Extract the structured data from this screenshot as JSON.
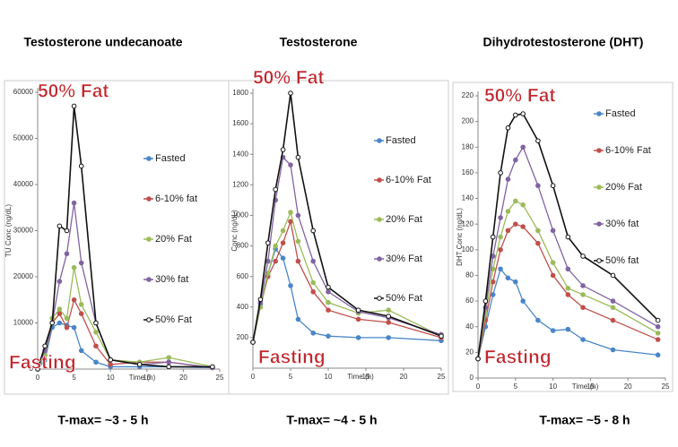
{
  "chart_data": [
    {
      "type": "line",
      "title": "Testosterone undecanoate",
      "note": "T-max= ~3 - 5 h",
      "fat_label": "50% Fat",
      "fasting_label": "Fasting",
      "xlabel": "Time (h)",
      "ylabel": "TU Conc (ng/dL)",
      "xlim": [
        0,
        25
      ],
      "ylim": [
        0,
        60000
      ],
      "xticks": [
        0,
        5,
        10,
        15,
        20,
        25
      ],
      "yticks": [
        0,
        10000,
        20000,
        30000,
        40000,
        50000,
        60000
      ],
      "x": [
        0,
        1,
        2,
        3,
        4,
        5,
        6,
        8,
        10,
        14,
        18,
        24
      ],
      "series": [
        {
          "name": "Fasted",
          "color": "#4a86c8",
          "values": [
            0,
            2000,
            9000,
            10000,
            9500,
            9000,
            4000,
            1500,
            500,
            500,
            500,
            300
          ]
        },
        {
          "name": "6-10% fat",
          "color": "#c0504d",
          "values": [
            0,
            3000,
            10000,
            12000,
            9000,
            15000,
            12000,
            5000,
            1000,
            1500,
            1500,
            300
          ]
        },
        {
          "name": "20% Fat",
          "color": "#9bbb59",
          "values": [
            0,
            3000,
            11000,
            13000,
            11000,
            22000,
            14000,
            8000,
            2000,
            1500,
            2500,
            500
          ]
        },
        {
          "name": "30% fat",
          "color": "#8064a2",
          "values": [
            0,
            4000,
            10000,
            19000,
            25000,
            36000,
            23000,
            10000,
            2000,
            1000,
            1500,
            300
          ]
        },
        {
          "name": "50% Fat",
          "color": "#111111",
          "values": [
            0,
            5000,
            10000,
            31000,
            30000,
            57000,
            44000,
            10000,
            2000,
            1000,
            500,
            500
          ]
        }
      ]
    },
    {
      "type": "line",
      "title": "Testosterone",
      "note": "T-max= ~4 - 5 h",
      "fat_label": "50% Fat",
      "fasting_label": "Fasting",
      "xlabel": "Time (h)",
      "ylabel": "Conc (ng/dL)",
      "xlim": [
        0,
        25
      ],
      "ylim": [
        0,
        1800
      ],
      "xticks": [
        0,
        5,
        10,
        15,
        20,
        25
      ],
      "yticks": [
        200,
        400,
        600,
        800,
        1000,
        1200,
        1400,
        1600,
        1800
      ],
      "x": [
        0,
        1,
        2,
        3,
        4,
        5,
        6,
        8,
        10,
        14,
        18,
        25
      ],
      "series": [
        {
          "name": "Fasted",
          "color": "#4a86c8",
          "values": [
            170,
            420,
            620,
            780,
            720,
            540,
            320,
            230,
            210,
            200,
            200,
            180
          ]
        },
        {
          "name": "6-10% Fat",
          "color": "#c0504d",
          "values": [
            170,
            400,
            600,
            700,
            820,
            960,
            700,
            500,
            380,
            320,
            300,
            200
          ]
        },
        {
          "name": "20% Fat",
          "color": "#9bbb59",
          "values": [
            170,
            400,
            620,
            800,
            900,
            1020,
            830,
            560,
            430,
            360,
            380,
            210
          ]
        },
        {
          "name": "30% Fat",
          "color": "#8064a2",
          "values": [
            170,
            430,
            700,
            1100,
            1380,
            1330,
            1000,
            700,
            500,
            370,
            330,
            220
          ]
        },
        {
          "name": "50% Fat",
          "color": "#111111",
          "values": [
            170,
            450,
            820,
            1170,
            1430,
            1800,
            1380,
            900,
            530,
            380,
            340,
            210
          ]
        }
      ]
    },
    {
      "type": "line",
      "title": "Dihydrotestosterone (DHT)",
      "note": "T-max= ~5 - 8 h",
      "fat_label": "50% Fat",
      "fasting_label": "Fasting",
      "xlabel": "Time (h)",
      "ylabel": "DHT Conc (ng/dL)",
      "xlim": [
        0,
        25
      ],
      "ylim": [
        0,
        220
      ],
      "xticks": [
        0,
        5,
        10,
        15,
        20,
        25
      ],
      "yticks": [
        0,
        20,
        40,
        60,
        80,
        100,
        120,
        140,
        160,
        180,
        200,
        220
      ],
      "x": [
        0,
        1,
        2,
        3,
        4,
        5,
        6,
        8,
        10,
        12,
        14,
        18,
        24
      ],
      "series": [
        {
          "name": "Fasted",
          "color": "#4a86c8",
          "values": [
            15,
            40,
            65,
            85,
            78,
            75,
            60,
            45,
            37,
            38,
            30,
            22,
            18
          ]
        },
        {
          "name": "6-10% Fat",
          "color": "#c0504d",
          "values": [
            15,
            45,
            75,
            100,
            115,
            120,
            118,
            105,
            80,
            65,
            55,
            45,
            30
          ]
        },
        {
          "name": "20% Fat",
          "color": "#9bbb59",
          "values": [
            15,
            50,
            85,
            110,
            130,
            138,
            135,
            115,
            90,
            70,
            65,
            55,
            35
          ]
        },
        {
          "name": "30% fat",
          "color": "#8064a2",
          "values": [
            15,
            55,
            95,
            125,
            155,
            170,
            180,
            150,
            115,
            85,
            72,
            60,
            40
          ]
        },
        {
          "name": "50% fat",
          "color": "#111111",
          "values": [
            15,
            60,
            110,
            160,
            195,
            205,
            206,
            185,
            150,
            110,
            95,
            80,
            45
          ]
        }
      ]
    }
  ]
}
